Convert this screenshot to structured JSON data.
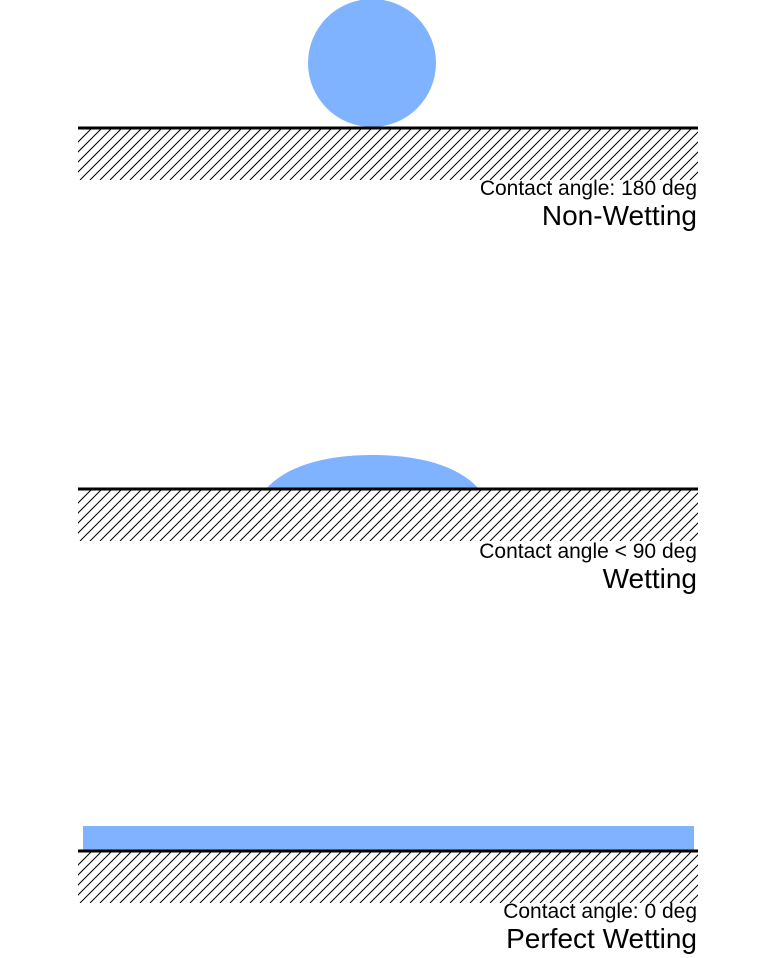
{
  "colors": {
    "liquid": "#80b3ff",
    "surface_line": "#000000",
    "hatch": "#000000",
    "background": "#ffffff"
  },
  "panels": [
    {
      "contact_angle_label": "Contact angle: 180 deg",
      "state_label": "Non-Wetting",
      "liquid_shape": "sphere-droplet"
    },
    {
      "contact_angle_label": "Contact angle < 90 deg",
      "state_label": "Wetting",
      "liquid_shape": "cap-droplet"
    },
    {
      "contact_angle_label": "Contact angle: 0 deg",
      "state_label": "Perfect Wetting",
      "liquid_shape": "flat-film"
    }
  ]
}
